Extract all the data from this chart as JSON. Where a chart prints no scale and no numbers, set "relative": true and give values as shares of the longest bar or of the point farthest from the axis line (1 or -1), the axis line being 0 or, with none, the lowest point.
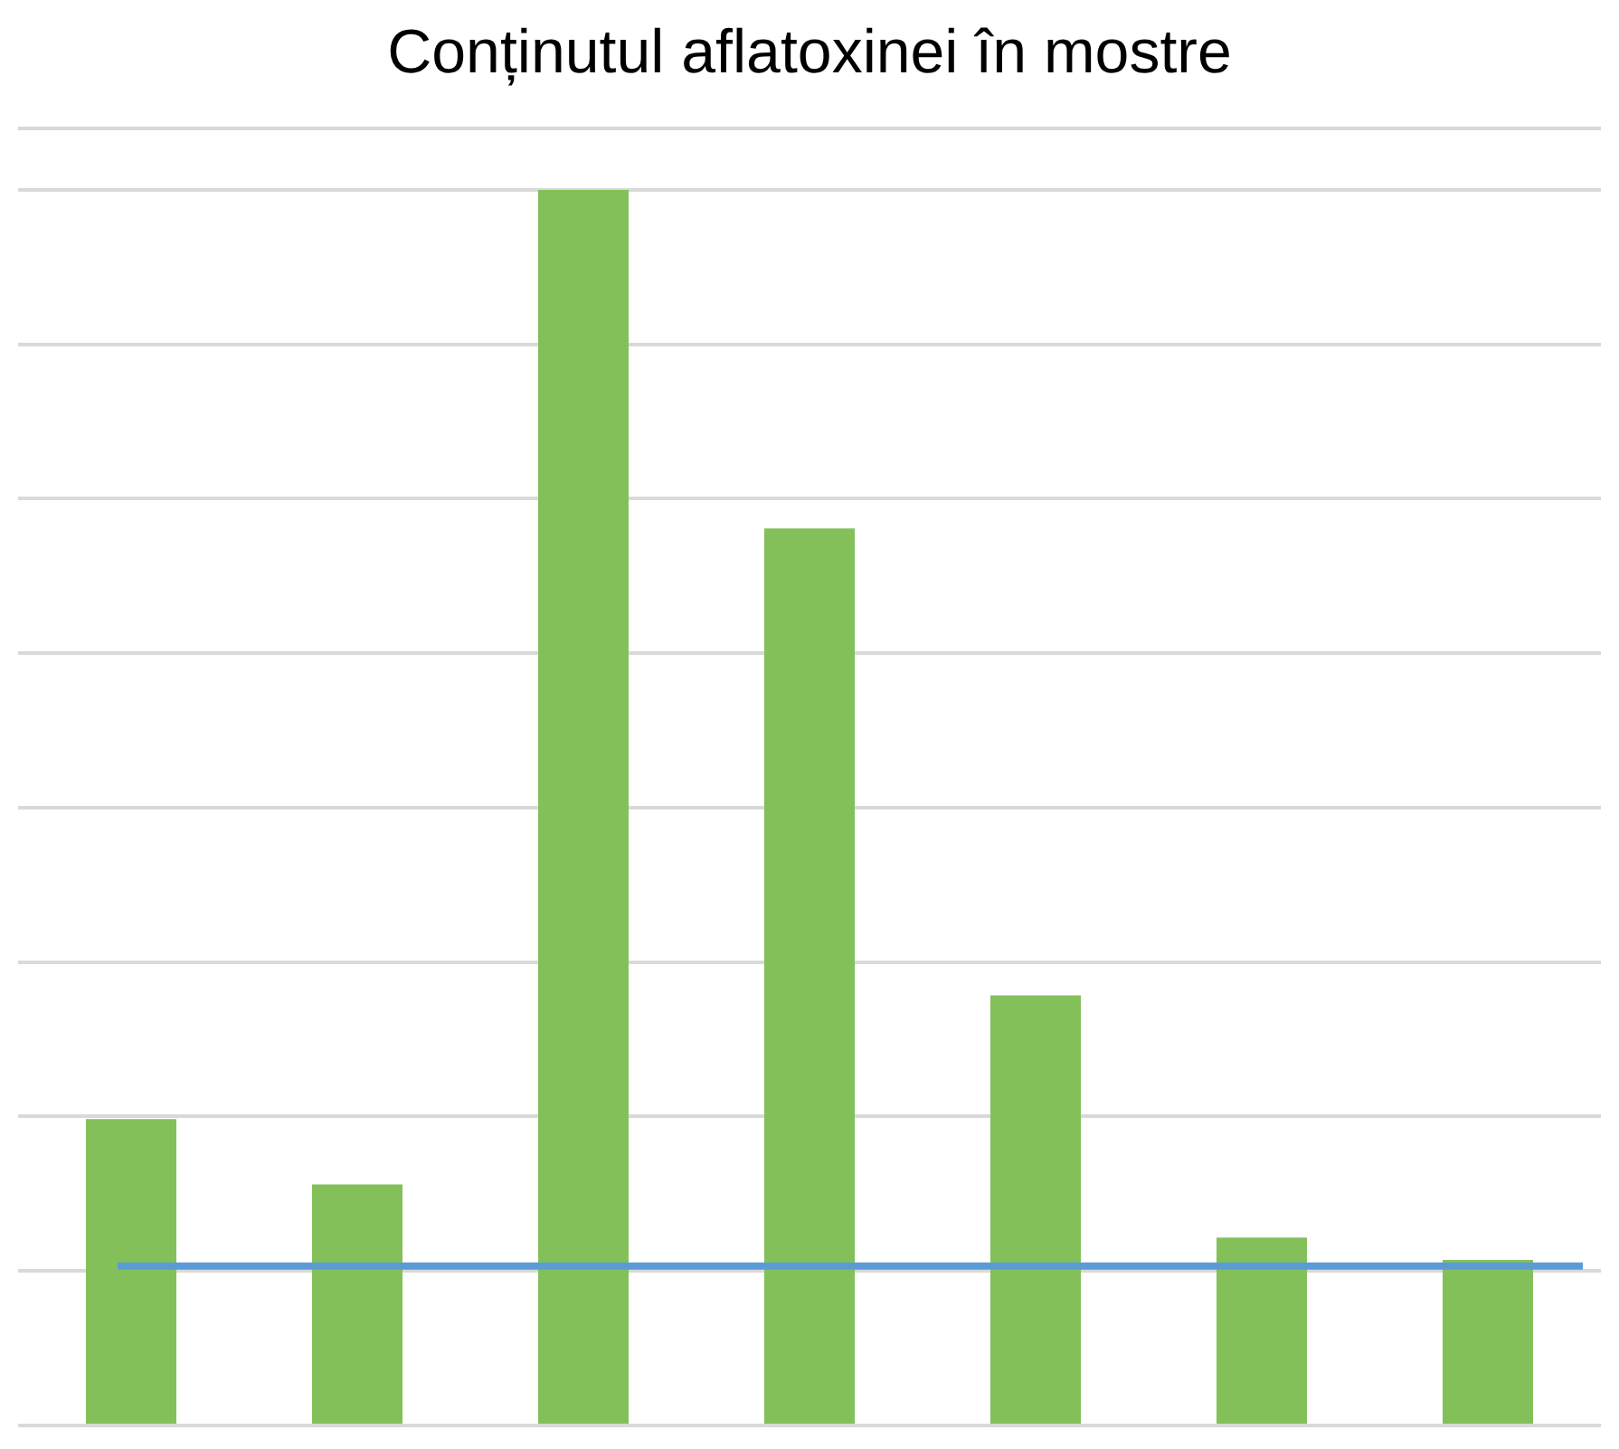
{
  "chart_data": {
    "type": "bar",
    "title": "Conținutul aflatoxinei în mostre",
    "relative": true,
    "categories": [
      null,
      null,
      null,
      null,
      null,
      null,
      null
    ],
    "values": [
      0.248,
      0.195,
      1,
      0.726,
      0.348,
      0.152,
      0.134
    ],
    "color": "#83c05a",
    "ref_lines": [
      {
        "axis": "y",
        "value": 0.129,
        "color": "#5b9bd5"
      }
    ],
    "grid": "y",
    "legend": false
  }
}
